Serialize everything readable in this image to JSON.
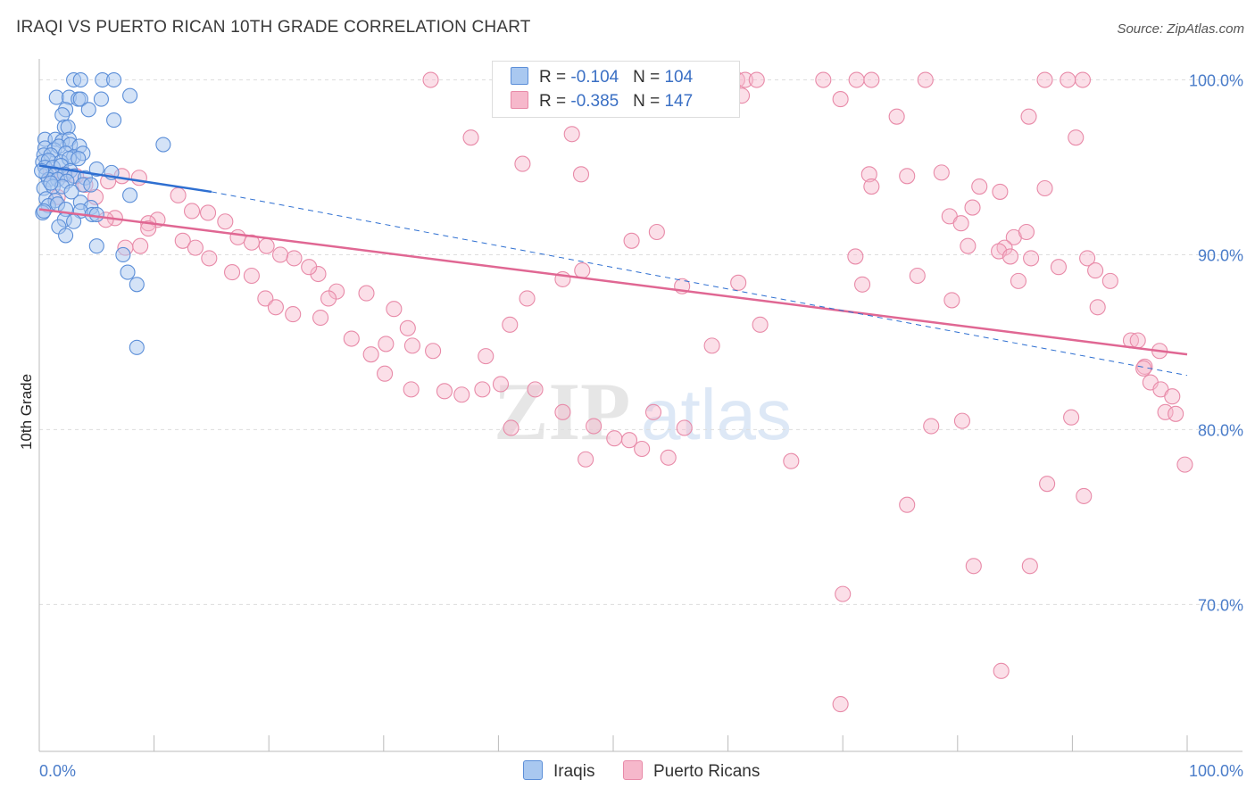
{
  "header": {
    "title": "IRAQI VS PUERTO RICAN 10TH GRADE CORRELATION CHART",
    "source": "Source: ZipAtlas.com"
  },
  "colors": {
    "iraqis_fill": "#a9c8f0",
    "iraqis_stroke": "#5b8ed8",
    "iraqis_line": "#2e6fd1",
    "puerto_fill": "#f6b8cb",
    "puerto_stroke": "#e88aa8",
    "puerto_line": "#e06793",
    "accent_text": "#3a6fc4",
    "grid": "#dddddd"
  },
  "legend": {
    "row1": {
      "r_label": "R = ",
      "r_value": "-0.104",
      "n_label": "N = ",
      "n_value": "104"
    },
    "row2": {
      "r_label": "R = ",
      "r_value": "-0.385",
      "n_label": "N = ",
      "n_value": "147"
    }
  },
  "watermark": {
    "zip": "ZIP",
    "atlas": "atlas"
  },
  "chart_data": {
    "type": "scatter",
    "title": "IRAQI VS PUERTO RICAN 10TH GRADE CORRELATION CHART",
    "xlabel": "",
    "ylabel": "10th Grade",
    "x_tick_labels": [
      "0.0%",
      "100.0%"
    ],
    "y_tick_labels": [
      "100.0%",
      "90.0%",
      "80.0%",
      "70.0%"
    ],
    "y_ticks": [
      100,
      90,
      80,
      70
    ],
    "xlim": [
      0,
      100
    ],
    "ylim": [
      61.6,
      101.2
    ],
    "grid": true,
    "legend_position": "bottom",
    "series": [
      {
        "name": "Iraqis",
        "r": -0.104,
        "n": 104,
        "trend": {
          "x": [
            0,
            15
          ],
          "y": [
            95.1,
            93.6
          ]
        },
        "trend_extended": {
          "x": [
            15,
            100
          ],
          "y": [
            93.6,
            83.1
          ]
        },
        "points": [
          [
            3.0,
            100
          ],
          [
            3.6,
            100
          ],
          [
            5.5,
            100
          ],
          [
            6.5,
            100
          ],
          [
            1.5,
            99
          ],
          [
            2.6,
            99
          ],
          [
            3.4,
            98.9
          ],
          [
            3.6,
            98.9
          ],
          [
            5.4,
            98.9
          ],
          [
            7.9,
            99.1
          ],
          [
            2.3,
            98.3
          ],
          [
            2.0,
            98.0
          ],
          [
            4.3,
            98.3
          ],
          [
            6.5,
            97.7
          ],
          [
            2.2,
            97.3
          ],
          [
            2.5,
            97.3
          ],
          [
            0.5,
            96.6
          ],
          [
            1.4,
            96.6
          ],
          [
            2.0,
            96.5
          ],
          [
            2.6,
            96.6
          ],
          [
            0.5,
            96.1
          ],
          [
            1.3,
            96.0
          ],
          [
            1.7,
            96.2
          ],
          [
            2.7,
            96.3
          ],
          [
            3.5,
            96.2
          ],
          [
            10.8,
            96.3
          ],
          [
            0.4,
            95.7
          ],
          [
            1.0,
            95.7
          ],
          [
            2.3,
            95.8
          ],
          [
            3.0,
            95.6
          ],
          [
            3.8,
            95.8
          ],
          [
            0.3,
            95.3
          ],
          [
            0.8,
            95.4
          ],
          [
            1.9,
            95.3
          ],
          [
            2.6,
            95.5
          ],
          [
            3.4,
            95.5
          ],
          [
            0.5,
            95.0
          ],
          [
            1.2,
            95.0
          ],
          [
            1.9,
            95.1
          ],
          [
            2.7,
            94.8
          ],
          [
            5.0,
            94.9
          ],
          [
            0.6,
            94.6
          ],
          [
            1.4,
            94.6
          ],
          [
            2.2,
            94.6
          ],
          [
            3.0,
            94.5
          ],
          [
            4.0,
            94.4
          ],
          [
            6.3,
            94.7
          ],
          [
            0.8,
            94.3
          ],
          [
            1.6,
            94.3
          ],
          [
            2.4,
            94.2
          ],
          [
            3.8,
            94.0
          ],
          [
            4.5,
            94.0
          ],
          [
            0.4,
            93.8
          ],
          [
            1.2,
            93.9
          ],
          [
            2.0,
            93.9
          ],
          [
            0.6,
            93.2
          ],
          [
            1.4,
            93.1
          ],
          [
            3.6,
            93.0
          ],
          [
            0.8,
            92.8
          ],
          [
            1.6,
            92.9
          ],
          [
            4.5,
            92.7
          ],
          [
            7.9,
            93.4
          ],
          [
            2.3,
            92.6
          ],
          [
            3.6,
            92.5
          ],
          [
            4.6,
            92.3
          ],
          [
            5.0,
            92.3
          ],
          [
            0.3,
            92.4
          ],
          [
            0.4,
            92.5
          ],
          [
            2.2,
            92.0
          ],
          [
            3.0,
            91.9
          ],
          [
            1.7,
            91.6
          ],
          [
            2.3,
            91.1
          ],
          [
            5.0,
            90.5
          ],
          [
            7.3,
            90.0
          ],
          [
            7.7,
            89.0
          ],
          [
            8.5,
            88.3
          ],
          [
            8.5,
            84.7
          ],
          [
            1.0,
            94.1
          ],
          [
            2.8,
            93.6
          ],
          [
            0.2,
            94.8
          ]
        ]
      },
      {
        "name": "Puerto Ricans",
        "r": -0.385,
        "n": 147,
        "trend": {
          "x": [
            0,
            100
          ],
          "y": [
            92.6,
            84.3
          ]
        },
        "points": [
          [
            34.1,
            100
          ],
          [
            58.8,
            100
          ],
          [
            60.8,
            100
          ],
          [
            61.5,
            100
          ],
          [
            62.5,
            100
          ],
          [
            68.3,
            100
          ],
          [
            71.2,
            100
          ],
          [
            72.5,
            100
          ],
          [
            77.2,
            100
          ],
          [
            87.6,
            100
          ],
          [
            89.6,
            100
          ],
          [
            90.9,
            100
          ],
          [
            49.3,
            99.3
          ],
          [
            53.7,
            99.0
          ],
          [
            61.2,
            99.1
          ],
          [
            69.8,
            98.9
          ],
          [
            74.7,
            97.9
          ],
          [
            86.2,
            97.9
          ],
          [
            37.6,
            96.7
          ],
          [
            46.4,
            96.9
          ],
          [
            42.1,
            95.2
          ],
          [
            47.2,
            94.6
          ],
          [
            72.3,
            94.6
          ],
          [
            90.3,
            96.7
          ],
          [
            75.6,
            94.5
          ],
          [
            78.6,
            94.7
          ],
          [
            81.9,
            93.9
          ],
          [
            72.5,
            93.9
          ],
          [
            83.7,
            93.6
          ],
          [
            87.6,
            93.8
          ],
          [
            81.3,
            92.7
          ],
          [
            79.3,
            92.2
          ],
          [
            80.3,
            91.8
          ],
          [
            84.9,
            91.0
          ],
          [
            86.0,
            91.3
          ],
          [
            84.1,
            90.4
          ],
          [
            83.6,
            90.2
          ],
          [
            80.9,
            90.5
          ],
          [
            84.6,
            89.9
          ],
          [
            86.4,
            89.8
          ],
          [
            88.8,
            89.3
          ],
          [
            91.3,
            89.8
          ],
          [
            92.0,
            89.1
          ],
          [
            71.1,
            89.9
          ],
          [
            76.5,
            88.8
          ],
          [
            79.5,
            87.4
          ],
          [
            85.3,
            88.5
          ],
          [
            92.2,
            87.0
          ],
          [
            93.3,
            88.5
          ],
          [
            71.7,
            88.3
          ],
          [
            96.3,
            83.6
          ],
          [
            95.1,
            85.1
          ],
          [
            95.7,
            85.1
          ],
          [
            96.2,
            83.5
          ],
          [
            96.8,
            82.7
          ],
          [
            97.6,
            84.5
          ],
          [
            97.7,
            82.3
          ],
          [
            98.1,
            81.0
          ],
          [
            98.7,
            81.9
          ],
          [
            99.0,
            80.9
          ],
          [
            99.8,
            78.0
          ],
          [
            91.0,
            76.2
          ],
          [
            89.9,
            80.7
          ],
          [
            87.8,
            76.9
          ],
          [
            86.3,
            72.2
          ],
          [
            81.4,
            72.2
          ],
          [
            75.6,
            75.7
          ],
          [
            70.0,
            70.6
          ],
          [
            69.8,
            64.3
          ],
          [
            83.8,
            66.2
          ],
          [
            77.7,
            80.2
          ],
          [
            80.4,
            80.5
          ],
          [
            65.5,
            78.2
          ],
          [
            56.2,
            80.1
          ],
          [
            53.5,
            81.0
          ],
          [
            51.4,
            79.4
          ],
          [
            47.6,
            78.3
          ],
          [
            41.1,
            80.1
          ],
          [
            58.6,
            84.8
          ],
          [
            62.8,
            86.0
          ],
          [
            60.9,
            88.4
          ],
          [
            56.0,
            88.2
          ],
          [
            53.8,
            91.3
          ],
          [
            51.6,
            90.8
          ],
          [
            47.3,
            89.1
          ],
          [
            45.6,
            88.6
          ],
          [
            42.5,
            87.5
          ],
          [
            41.0,
            86.0
          ],
          [
            38.9,
            84.2
          ],
          [
            34.3,
            84.5
          ],
          [
            32.5,
            84.8
          ],
          [
            30.2,
            84.9
          ],
          [
            32.1,
            85.8
          ],
          [
            30.9,
            86.9
          ],
          [
            28.5,
            87.8
          ],
          [
            25.9,
            87.9
          ],
          [
            25.2,
            87.5
          ],
          [
            24.3,
            88.9
          ],
          [
            23.5,
            89.3
          ],
          [
            22.2,
            89.8
          ],
          [
            21.0,
            90.0
          ],
          [
            19.8,
            90.5
          ],
          [
            18.5,
            90.7
          ],
          [
            17.3,
            91.0
          ],
          [
            16.2,
            91.9
          ],
          [
            14.7,
            92.4
          ],
          [
            13.3,
            92.5
          ],
          [
            12.1,
            93.4
          ],
          [
            10.3,
            92.0
          ],
          [
            9.5,
            91.8
          ],
          [
            8.8,
            90.5
          ],
          [
            7.5,
            90.4
          ],
          [
            6.6,
            92.1
          ],
          [
            5.8,
            92.0
          ],
          [
            4.9,
            93.3
          ],
          [
            4.0,
            94.0
          ],
          [
            3.2,
            94.5
          ],
          [
            2.2,
            94.6
          ],
          [
            1.6,
            93.3
          ],
          [
            1.0,
            94.7
          ],
          [
            6.0,
            94.2
          ],
          [
            7.2,
            94.5
          ],
          [
            8.7,
            94.4
          ],
          [
            9.5,
            91.5
          ],
          [
            12.5,
            90.8
          ],
          [
            13.6,
            90.4
          ],
          [
            14.8,
            89.8
          ],
          [
            16.8,
            89.0
          ],
          [
            18.5,
            88.8
          ],
          [
            19.7,
            87.5
          ],
          [
            20.6,
            87.0
          ],
          [
            22.1,
            86.6
          ],
          [
            24.5,
            86.4
          ],
          [
            27.2,
            85.2
          ],
          [
            28.9,
            84.3
          ],
          [
            30.1,
            83.2
          ],
          [
            32.4,
            82.3
          ],
          [
            35.3,
            82.2
          ],
          [
            36.8,
            82.0
          ],
          [
            38.6,
            82.3
          ],
          [
            40.2,
            82.6
          ],
          [
            43.2,
            82.3
          ],
          [
            45.6,
            81.0
          ],
          [
            48.3,
            80.2
          ],
          [
            50.1,
            79.5
          ],
          [
            52.5,
            78.9
          ],
          [
            54.8,
            78.4
          ]
        ]
      }
    ]
  },
  "bottom_legend": {
    "iraqis": "Iraqis",
    "puerto_ricans": "Puerto Ricans"
  }
}
